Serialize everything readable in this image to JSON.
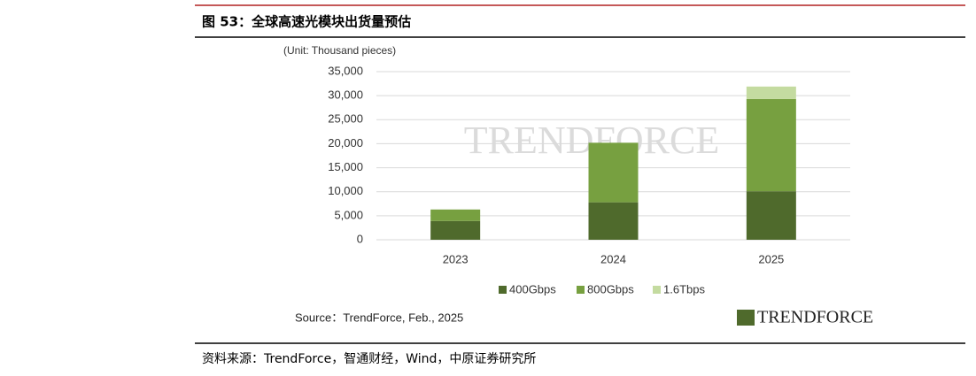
{
  "figure_title": "图 53：全球高速光模块出货量预估",
  "footer": "资料来源：TrendForce，智通财经，Wind，中原证券研究所",
  "chart_data": {
    "type": "stacked_bar",
    "unit_label": "(Unit: Thousand pieces)",
    "categories": [
      "2023",
      "2024",
      "2025"
    ],
    "series": [
      {
        "name": "400Gbps",
        "color": "#4f6a2c",
        "values": [
          3900,
          7800,
          10100
        ]
      },
      {
        "name": "800Gbps",
        "color": "#77a040",
        "values": [
          2400,
          12400,
          19200
        ]
      },
      {
        "name": "1.6Tbps",
        "color": "#c4dba0",
        "values": [
          null,
          null,
          2600
        ]
      }
    ],
    "ylim": [
      0,
      35000
    ],
    "yticks": [
      0,
      {
        "value": 5000,
        "label": "5,000"
      },
      {
        "value": 10000,
        "label": "10,000"
      },
      {
        "value": 15000,
        "label": "15,000"
      },
      {
        "value": 20000,
        "label": "20,000"
      },
      {
        "value": 25000,
        "label": "25,000"
      },
      {
        "value": 30000,
        "label": "30,000"
      },
      {
        "value": 35000,
        "label": "35,000"
      }
    ],
    "grid": true,
    "source": "Source：TrendForce, Feb., 2025",
    "watermark": "TRENDFORCE",
    "logo": "TRENDFORCE"
  }
}
